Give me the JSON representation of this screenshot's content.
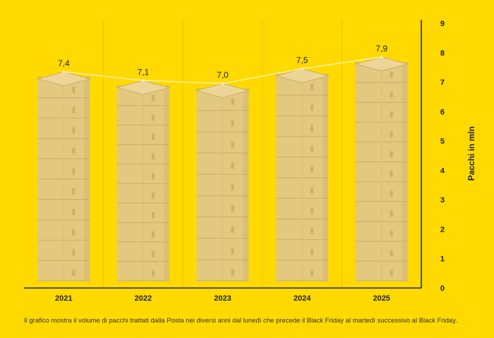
{
  "chart_data": {
    "type": "bar",
    "categories": [
      "2021",
      "2022",
      "2023",
      "2024",
      "2025"
    ],
    "values": [
      7.4,
      7.1,
      7.0,
      7.5,
      7.9
    ],
    "value_labels": [
      "7,4",
      "7,1",
      "7,0",
      "7,5",
      "7,9"
    ],
    "ylabel": "Pacchi in mln",
    "ylim": [
      0,
      9
    ],
    "yticks": [
      "0",
      "1",
      "2",
      "3",
      "4",
      "5",
      "6",
      "7",
      "8",
      "9"
    ],
    "y_axis_position": "right",
    "trend_line": true,
    "grid": "vertical category separators",
    "mark_style": "stacked parcel boxes",
    "colors": {
      "background": "#FFD900",
      "box": "#E3C87F",
      "box_top": "#EDD597",
      "box_edge": "#C9AE67",
      "trend_line": "#FFF3A8",
      "axis": "#222222"
    }
  },
  "caption": "Il grafico mostra il volume di pacchi trattati dalla Posta nei diversi anni dal lunedì che precede il Black Friday al martedì successivo al Black Friday."
}
